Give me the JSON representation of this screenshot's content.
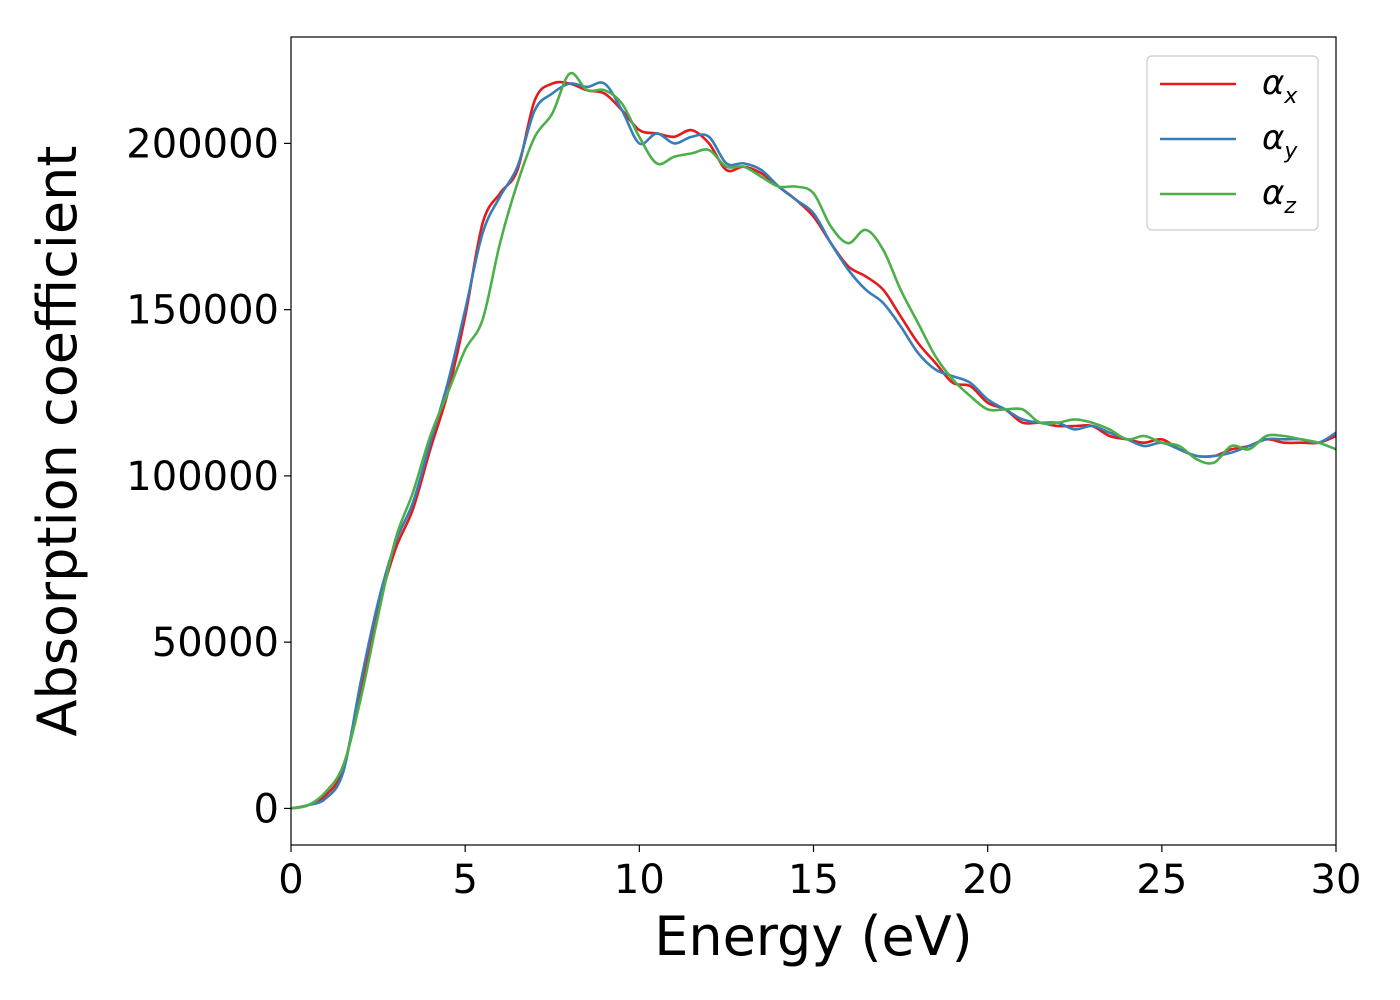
{
  "chart_data": {
    "type": "line",
    "xlabel": "Energy (eV)",
    "ylabel": "Absorption coefficient",
    "xlim": [
      0,
      30
    ],
    "ylim": [
      -11000,
      232000
    ],
    "xticks": [
      0,
      5,
      10,
      15,
      20,
      25,
      30
    ],
    "xtick_labels": [
      "0",
      "5",
      "10",
      "15",
      "20",
      "25",
      "30"
    ],
    "yticks": [
      0,
      50000,
      100000,
      150000,
      200000
    ],
    "ytick_labels": [
      "0",
      "50000",
      "100000",
      "150000",
      "200000"
    ],
    "grid": false,
    "legend_position": "top-right",
    "series": [
      {
        "name": "α",
        "subscript": "x",
        "color": "#e41a1c",
        "x": [
          0,
          0.5,
          1,
          1.5,
          2,
          2.5,
          3,
          3.5,
          4,
          4.5,
          5,
          5.5,
          6,
          6.5,
          7,
          7.5,
          8,
          8.5,
          9,
          9.5,
          10,
          10.5,
          11,
          11.5,
          12,
          12.5,
          13,
          13.5,
          14,
          14.5,
          15,
          15.5,
          16,
          16.5,
          17,
          17.5,
          18,
          18.5,
          19,
          19.5,
          20,
          20.5,
          21,
          21.5,
          22,
          22.5,
          23,
          23.5,
          24,
          24.5,
          25,
          25.5,
          26,
          26.5,
          27,
          27.5,
          28,
          28.5,
          29,
          29.5,
          30
        ],
        "values": [
          0,
          1000,
          4000,
          12000,
          36000,
          60000,
          78000,
          90000,
          108000,
          125000,
          148000,
          176000,
          185000,
          192000,
          213000,
          218000,
          218000,
          216000,
          215000,
          210000,
          204000,
          203000,
          202000,
          204000,
          200000,
          192000,
          193000,
          191000,
          187000,
          183000,
          178000,
          170000,
          163000,
          160000,
          156000,
          148000,
          140000,
          134000,
          128000,
          127000,
          122000,
          120000,
          116000,
          116000,
          115000,
          115000,
          115000,
          112000,
          111000,
          110000,
          111000,
          108000,
          106000,
          106000,
          108000,
          109000,
          111000,
          110000,
          110000,
          110000,
          112000
        ]
      },
      {
        "name": "α",
        "subscript": "y",
        "color": "#377eb8",
        "x": [
          0,
          0.5,
          1,
          1.5,
          2,
          2.5,
          3,
          3.5,
          4,
          4.5,
          5,
          5.5,
          6,
          6.5,
          7,
          7.5,
          8,
          8.5,
          9,
          9.5,
          10,
          10.5,
          11,
          11.5,
          12,
          12.5,
          13,
          13.5,
          14,
          14.5,
          15,
          15.5,
          16,
          16.5,
          17,
          17.5,
          18,
          18.5,
          19,
          19.5,
          20,
          20.5,
          21,
          21.5,
          22,
          22.5,
          23,
          23.5,
          24,
          24.5,
          25,
          25.5,
          26,
          26.5,
          27,
          27.5,
          28,
          28.5,
          29,
          29.5,
          30
        ],
        "values": [
          0,
          1000,
          3000,
          11000,
          38000,
          62000,
          80000,
          92000,
          110000,
          128000,
          150000,
          173000,
          184000,
          193000,
          210000,
          215000,
          218000,
          217000,
          218000,
          210000,
          200000,
          203000,
          200000,
          202000,
          202000,
          194000,
          194000,
          192000,
          187000,
          183000,
          179000,
          170000,
          162000,
          156000,
          152000,
          145000,
          137000,
          132000,
          130000,
          128000,
          123000,
          120000,
          117000,
          116000,
          116000,
          114000,
          115000,
          113000,
          111000,
          109000,
          110000,
          108000,
          106000,
          106000,
          107000,
          109000,
          111000,
          111000,
          111000,
          110000,
          113000
        ]
      },
      {
        "name": "α",
        "subscript": "z",
        "color": "#4daf4a",
        "x": [
          0,
          0.5,
          1,
          1.5,
          2,
          2.5,
          3,
          3.5,
          4,
          4.5,
          5,
          5.5,
          6,
          6.5,
          7,
          7.5,
          8,
          8.5,
          9,
          9.5,
          10,
          10.5,
          11,
          11.5,
          12,
          12.5,
          13,
          13.5,
          14,
          14.5,
          15,
          15.5,
          16,
          16.5,
          17,
          17.5,
          18,
          18.5,
          19,
          19.5,
          20,
          20.5,
          21,
          21.5,
          22,
          22.5,
          23,
          23.5,
          24,
          24.5,
          25,
          25.5,
          26,
          26.5,
          27,
          27.5,
          28,
          28.5,
          29,
          29.5,
          30
        ],
        "values": [
          0,
          1000,
          5000,
          13000,
          33000,
          58000,
          81000,
          95000,
          112000,
          125000,
          138000,
          147000,
          170000,
          188000,
          202000,
          209000,
          221000,
          216000,
          216000,
          212000,
          202000,
          194000,
          196000,
          197000,
          198000,
          193000,
          193000,
          190000,
          187000,
          187000,
          185000,
          175000,
          170000,
          174000,
          168000,
          156000,
          146000,
          136000,
          129000,
          124000,
          120000,
          120000,
          120000,
          116000,
          116000,
          117000,
          116000,
          114000,
          111000,
          112000,
          110000,
          109000,
          105000,
          104000,
          109000,
          108000,
          112000,
          112000,
          111000,
          110000,
          108000
        ]
      }
    ]
  }
}
